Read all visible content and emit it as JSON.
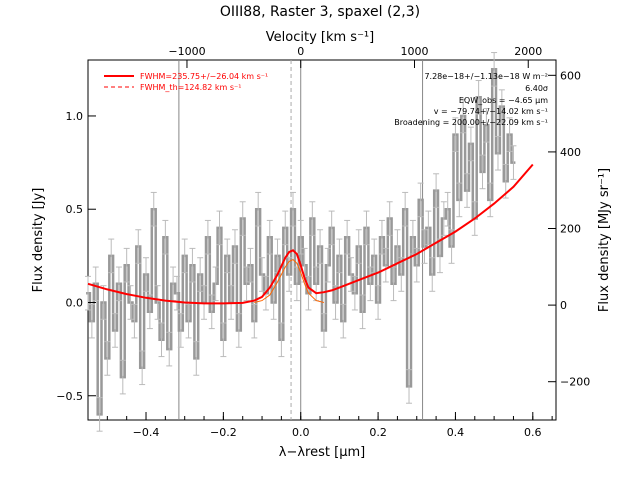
{
  "chart_data": {
    "type": "line",
    "title": "OIII88, Raster 3, spaxel (2,3)",
    "xlabel": "λ−λrest [μm]",
    "ylabel_left": "Flux density [Jy]",
    "ylabel_right": "Flux density [MJy sr⁻¹]",
    "xlabel_top": "Velocity [km s⁻¹]",
    "xlim": [
      -0.55,
      0.66
    ],
    "ylim": [
      -0.63,
      1.3
    ],
    "y2lim": [
      -300,
      640
    ],
    "x_ticks": [
      -0.4,
      -0.2,
      0.0,
      0.2,
      0.4,
      0.6
    ],
    "x_tick_labels": [
      "−0.4",
      "−0.2",
      "0.0",
      "0.2",
      "0.4",
      "0.6"
    ],
    "y_ticks": [
      -0.5,
      0.0,
      0.5,
      1.0
    ],
    "y_tick_labels": [
      "−0.5",
      "0.0",
      "0.5",
      "1.0"
    ],
    "y2_ticks": [
      -200,
      0,
      200,
      400,
      600
    ],
    "y2_tick_labels": [
      "−200",
      "0",
      "200",
      "400",
      "600"
    ],
    "top_ticks": [
      -1000,
      0,
      1000,
      2000
    ],
    "top_tick_labels": [
      "−1000",
      "0",
      "1000",
      "2000"
    ],
    "vertical_lines_x": [
      -0.315,
      0.0,
      0.315
    ],
    "dashed_vertical_x": -0.025,
    "legend": {
      "placement": "top-left",
      "entries": [
        {
          "label": "FWHM=235.75+/−26.04 km s⁻¹",
          "style": "solid",
          "color": "#ff0000"
        },
        {
          "label": "FWHM_th=124.82 km s⁻¹",
          "style": "dashed",
          "color": "#ff0000"
        }
      ]
    },
    "annotations": [
      "7.28e−18+/−1.13e−18 W m⁻²",
      "6.40σ",
      "EQW_obs = −4.65 μm",
      "v = −79.74+/−14.02 km s⁻¹",
      "Broadening = 200.00+/−22.09 km s⁻¹"
    ],
    "colors": {
      "data": "#999999",
      "fit": "#ff0000",
      "component": "#ff6600",
      "vline": "#888888"
    },
    "series": [
      {
        "name": "data",
        "style": "step",
        "x": [
          -0.55,
          -0.54,
          -0.53,
          -0.52,
          -0.51,
          -0.5,
          -0.49,
          -0.48,
          -0.47,
          -0.46,
          -0.45,
          -0.44,
          -0.43,
          -0.42,
          -0.41,
          -0.4,
          -0.39,
          -0.38,
          -0.37,
          -0.36,
          -0.35,
          -0.34,
          -0.33,
          -0.32,
          -0.31,
          -0.3,
          -0.29,
          -0.28,
          -0.27,
          -0.26,
          -0.25,
          -0.24,
          -0.23,
          -0.22,
          -0.21,
          -0.2,
          -0.19,
          -0.18,
          -0.17,
          -0.16,
          -0.15,
          -0.14,
          -0.13,
          -0.12,
          -0.11,
          -0.1,
          -0.09,
          -0.08,
          -0.07,
          -0.06,
          -0.05,
          -0.04,
          -0.03,
          -0.02,
          -0.01,
          0.0,
          0.01,
          0.02,
          0.03,
          0.04,
          0.05,
          0.06,
          0.07,
          0.08,
          0.09,
          0.1,
          0.11,
          0.12,
          0.13,
          0.14,
          0.15,
          0.16,
          0.17,
          0.18,
          0.19,
          0.2,
          0.21,
          0.22,
          0.23,
          0.24,
          0.25,
          0.26,
          0.27,
          0.28,
          0.29,
          0.3,
          0.31,
          0.32,
          0.33,
          0.34,
          0.35,
          0.36,
          0.37,
          0.38,
          0.39,
          0.4,
          0.41,
          0.42,
          0.43,
          0.44,
          0.45,
          0.46,
          0.47,
          0.48,
          0.49,
          0.5,
          0.51,
          0.52,
          0.53,
          0.54,
          0.55
        ],
        "y": [
          0.05,
          -0.1,
          0.1,
          -0.6,
          0.0,
          -0.3,
          0.25,
          -0.15,
          0.1,
          -0.4,
          0.2,
          0.0,
          -0.1,
          0.3,
          -0.35,
          0.15,
          -0.05,
          0.5,
          0.0,
          -0.2,
          0.35,
          -0.25,
          0.1,
          0.05,
          -0.15,
          0.25,
          -0.1,
          0.2,
          -0.3,
          0.15,
          0.0,
          0.35,
          -0.05,
          0.1,
          0.4,
          -0.2,
          0.25,
          0.0,
          0.3,
          -0.15,
          0.45,
          0.1,
          0.2,
          -0.1,
          0.5,
          0.15,
          0.05,
          0.35,
          0.0,
          0.25,
          -0.2,
          0.4,
          0.15,
          0.5,
          0.1,
          0.35,
          0.2,
          0.05,
          0.45,
          0.1,
          0.3,
          -0.15,
          0.2,
          0.4,
          0.0,
          0.25,
          -0.1,
          0.35,
          0.15,
          0.05,
          0.3,
          -0.05,
          0.4,
          0.1,
          0.25,
          0.0,
          0.35,
          0.2,
          0.45,
          0.1,
          0.3,
          0.15,
          0.5,
          -0.45,
          0.35,
          0.2,
          0.55,
          0.3,
          0.4,
          0.15,
          0.6,
          0.25,
          0.45,
          0.5,
          0.3,
          0.9,
          0.55,
          1.0,
          0.6,
          0.85,
          0.45,
          1.1,
          0.7,
          0.95,
          0.55,
          1.25,
          0.8,
          1.05,
          0.65,
          0.9,
          0.75
        ]
      },
      {
        "name": "fit",
        "style": "line",
        "x": [
          -0.55,
          -0.5,
          -0.45,
          -0.4,
          -0.35,
          -0.3,
          -0.25,
          -0.2,
          -0.15,
          -0.12,
          -0.1,
          -0.08,
          -0.06,
          -0.04,
          -0.03,
          -0.02,
          -0.01,
          0.0,
          0.01,
          0.02,
          0.04,
          0.06,
          0.08,
          0.1,
          0.15,
          0.2,
          0.25,
          0.3,
          0.35,
          0.4,
          0.45,
          0.5,
          0.55,
          0.6
        ],
        "y": [
          0.1,
          0.07,
          0.045,
          0.025,
          0.01,
          0.0,
          -0.005,
          -0.005,
          -0.002,
          0.01,
          0.03,
          0.08,
          0.15,
          0.24,
          0.27,
          0.28,
          0.26,
          0.2,
          0.13,
          0.08,
          0.05,
          0.055,
          0.065,
          0.08,
          0.12,
          0.16,
          0.21,
          0.26,
          0.32,
          0.38,
          0.45,
          0.53,
          0.62,
          0.74
        ]
      },
      {
        "name": "component",
        "style": "line",
        "x": [
          -0.12,
          -0.1,
          -0.08,
          -0.06,
          -0.04,
          -0.03,
          -0.02,
          -0.01,
          0.0,
          0.01,
          0.02,
          0.04,
          0.06
        ],
        "y": [
          0.0,
          0.01,
          0.04,
          0.11,
          0.19,
          0.22,
          0.23,
          0.21,
          0.16,
          0.1,
          0.05,
          0.01,
          0.0
        ]
      }
    ]
  }
}
